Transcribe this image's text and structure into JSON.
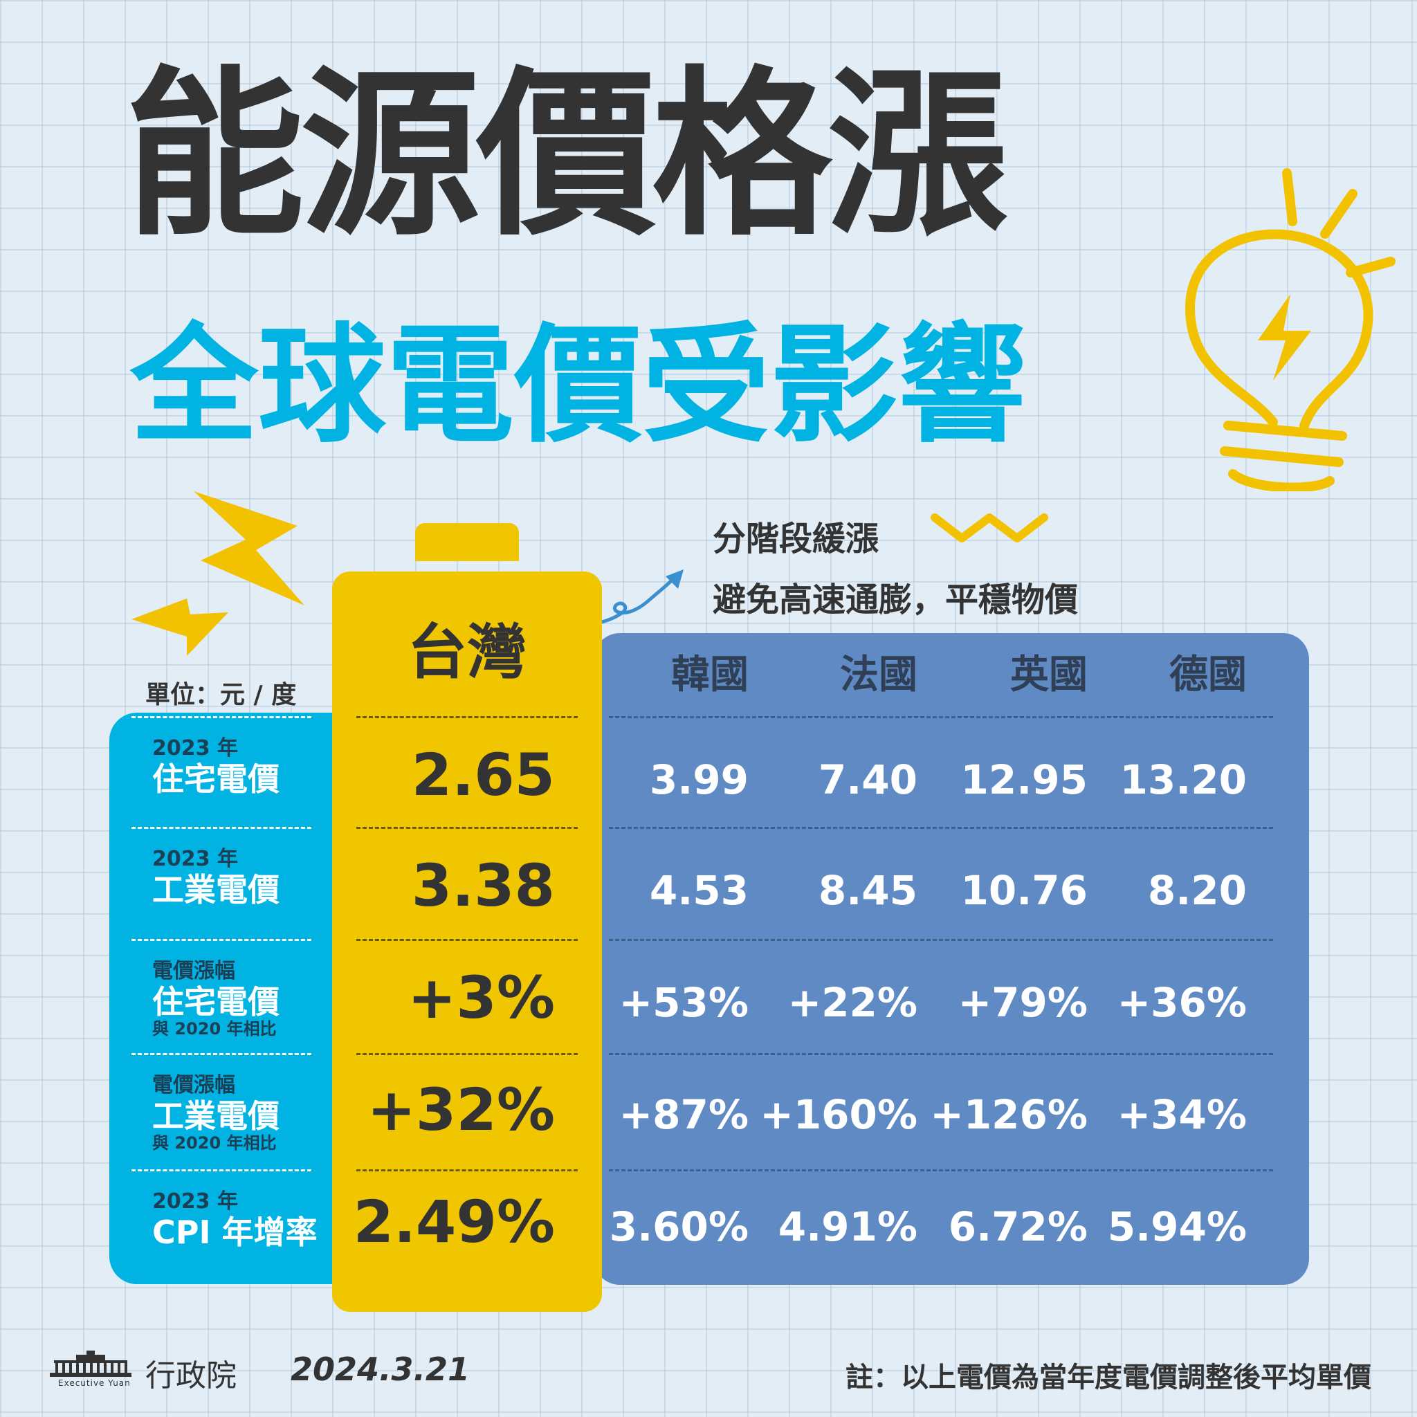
{
  "title": "能源價格漲",
  "subtitle": "全球電價受影響",
  "callout": {
    "line1": "分階段緩漲",
    "line2": "避免高速通膨，平穩物價"
  },
  "unit": "單位：元 / 度",
  "highlight_country": "台灣",
  "countries": [
    "韓國",
    "法國",
    "英國",
    "德國"
  ],
  "rows": [
    {
      "small": "2023 年",
      "big": "住宅電價",
      "note": "",
      "taiwan": "2.65",
      "values": [
        "3.99",
        "7.40",
        "12.95",
        "13.20"
      ]
    },
    {
      "small": "2023 年",
      "big": "工業電價",
      "note": "",
      "taiwan": "3.38",
      "values": [
        "4.53",
        "8.45",
        "10.76",
        "8.20"
      ]
    },
    {
      "small": "電價漲幅",
      "big": "住宅電價",
      "note": "與 2020 年相比",
      "taiwan": "+3%",
      "values": [
        "+53%",
        "+22%",
        "+79%",
        "+36%"
      ]
    },
    {
      "small": "電價漲幅",
      "big": "工業電價",
      "note": "與 2020 年相比",
      "taiwan": "+32%",
      "values": [
        "+87%",
        "+160%",
        "+126%",
        "+34%"
      ]
    },
    {
      "small": "2023 年",
      "big": "CPI 年增率",
      "note": "",
      "taiwan": "2.49%",
      "values": [
        "3.60%",
        "4.91%",
        "6.72%",
        "5.94%"
      ]
    }
  ],
  "footer": {
    "org": "行政院",
    "logo_caption": "Executive Yuan",
    "date": "2024.3.21",
    "note": "註：以上電價為當年度電價調整後平均單價"
  },
  "colors": {
    "background": "#e2edf5",
    "dark_text": "#333333",
    "cyan": "#00b3e3",
    "yellow": "#f0c600",
    "blue_panel": "#5f8ac4",
    "accent_yellow": "#f2c200",
    "arrow": "#3a8fd0"
  },
  "icons": [
    "lightbulb-icon",
    "lightning-bolt-icon",
    "zigzag-icon",
    "curved-arrow-icon",
    "executive-yuan-logo-icon"
  ]
}
